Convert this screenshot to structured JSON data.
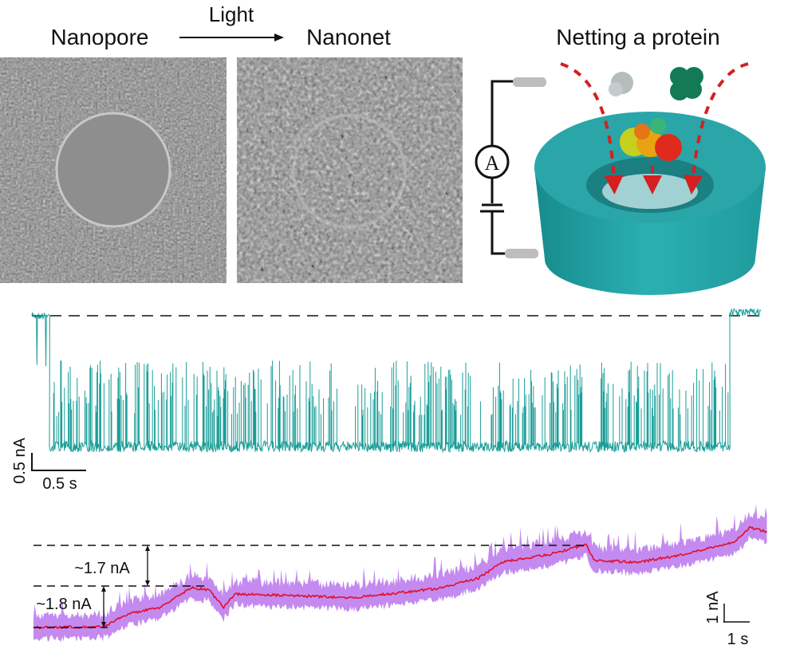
{
  "panel_a": {
    "label_left": "Nanopore",
    "arrow_label": "Light",
    "label_right": "Nanonet",
    "label_diagram": "Netting a protein",
    "ammeter_symbol": "A",
    "colors": {
      "membrane": "#2aa6a8",
      "path_arrows": "#d42020",
      "circuit": "#111111",
      "electrode": "#bdbdbd"
    }
  },
  "panel_b": {
    "scale_y": "0.5 nA",
    "scale_x": "0.5 s",
    "colors": {
      "trace": "#1a9e98"
    }
  },
  "panel_c": {
    "step_upper": "~1.7 nA",
    "step_lower": "~1.8 nA",
    "scale_y": "1 nA",
    "scale_x": "1 s",
    "colors": {
      "raw_trace": "#c48af0",
      "smoothed_trace": "#e0102a"
    }
  }
}
